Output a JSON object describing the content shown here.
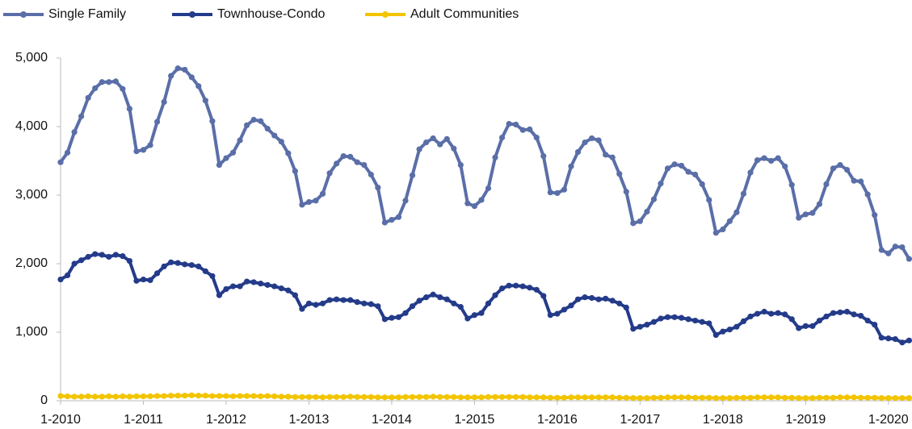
{
  "chart_data": {
    "type": "line",
    "categories": [
      "1-2010",
      null,
      null,
      null,
      null,
      null,
      null,
      null,
      null,
      null,
      null,
      null,
      "1-2011",
      null,
      null,
      null,
      null,
      null,
      null,
      null,
      null,
      null,
      null,
      null,
      "1-2012",
      null,
      null,
      null,
      null,
      null,
      null,
      null,
      null,
      null,
      null,
      null,
      "1-2013",
      null,
      null,
      null,
      null,
      null,
      null,
      null,
      null,
      null,
      null,
      null,
      "1-2014",
      null,
      null,
      null,
      null,
      null,
      null,
      null,
      null,
      null,
      null,
      null,
      "1-2015",
      null,
      null,
      null,
      null,
      null,
      null,
      null,
      null,
      null,
      null,
      null,
      "1-2016",
      null,
      null,
      null,
      null,
      null,
      null,
      null,
      null,
      null,
      null,
      null,
      "1-2017",
      null,
      null,
      null,
      null,
      null,
      null,
      null,
      null,
      null,
      null,
      null,
      "1-2018",
      null,
      null,
      null,
      null,
      null,
      null,
      null,
      null,
      null,
      null,
      null,
      "1-2019",
      null,
      null,
      null,
      null,
      null,
      null,
      null,
      null,
      null,
      null,
      null,
      "1-2020",
      null,
      null,
      null
    ],
    "series": [
      {
        "name": "Single Family",
        "color": "#5a6ea8",
        "values": [
          3480,
          3620,
          3920,
          4150,
          4420,
          4560,
          4650,
          4650,
          4660,
          4550,
          4260,
          3640,
          3660,
          3730,
          4070,
          4360,
          4740,
          4850,
          4830,
          4720,
          4590,
          4380,
          4080,
          3440,
          3540,
          3620,
          3800,
          4020,
          4100,
          4080,
          3970,
          3870,
          3780,
          3610,
          3350,
          2860,
          2900,
          2920,
          3020,
          3320,
          3460,
          3570,
          3560,
          3480,
          3440,
          3300,
          3110,
          2600,
          2640,
          2680,
          2920,
          3290,
          3670,
          3770,
          3830,
          3740,
          3820,
          3680,
          3440,
          2880,
          2840,
          2930,
          3100,
          3550,
          3840,
          4040,
          4030,
          3950,
          3960,
          3840,
          3570,
          3040,
          3030,
          3080,
          3420,
          3630,
          3770,
          3830,
          3800,
          3590,
          3550,
          3310,
          3050,
          2590,
          2620,
          2760,
          2940,
          3170,
          3390,
          3450,
          3430,
          3340,
          3300,
          3160,
          2930,
          2450,
          2500,
          2620,
          2750,
          3020,
          3330,
          3510,
          3540,
          3500,
          3540,
          3420,
          3150,
          2670,
          2720,
          2740,
          2870,
          3160,
          3390,
          3440,
          3370,
          3210,
          3200,
          3010,
          2710,
          2200,
          2150,
          2250,
          2240,
          2070
        ]
      },
      {
        "name": "Townhouse-Condo",
        "color": "#243b8a",
        "values": [
          1770,
          1830,
          2000,
          2050,
          2100,
          2140,
          2130,
          2100,
          2130,
          2110,
          2040,
          1750,
          1770,
          1760,
          1860,
          1960,
          2020,
          2010,
          1990,
          1980,
          1960,
          1890,
          1820,
          1540,
          1630,
          1670,
          1670,
          1740,
          1730,
          1710,
          1690,
          1670,
          1640,
          1610,
          1540,
          1340,
          1420,
          1400,
          1420,
          1470,
          1480,
          1470,
          1470,
          1440,
          1420,
          1410,
          1380,
          1190,
          1210,
          1220,
          1280,
          1380,
          1460,
          1510,
          1550,
          1510,
          1480,
          1420,
          1370,
          1200,
          1250,
          1280,
          1420,
          1540,
          1640,
          1680,
          1680,
          1670,
          1650,
          1620,
          1530,
          1250,
          1270,
          1330,
          1390,
          1480,
          1510,
          1500,
          1480,
          1490,
          1460,
          1420,
          1360,
          1050,
          1080,
          1110,
          1150,
          1200,
          1220,
          1220,
          1210,
          1190,
          1170,
          1150,
          1130,
          960,
          1010,
          1040,
          1080,
          1160,
          1230,
          1270,
          1300,
          1270,
          1280,
          1260,
          1190,
          1060,
          1090,
          1090,
          1170,
          1230,
          1280,
          1290,
          1300,
          1260,
          1240,
          1170,
          1110,
          920,
          910,
          900,
          850,
          880
        ]
      },
      {
        "name": "Adult Communities",
        "color": "#f2c500",
        "values": [
          70,
          65,
          60,
          60,
          65,
          60,
          60,
          65,
          60,
          65,
          60,
          65,
          65,
          65,
          70,
          70,
          75,
          75,
          75,
          80,
          75,
          75,
          70,
          70,
          70,
          65,
          70,
          70,
          70,
          65,
          70,
          65,
          60,
          60,
          55,
          55,
          55,
          55,
          50,
          55,
          55,
          55,
          60,
          55,
          55,
          55,
          50,
          50,
          50,
          50,
          55,
          55,
          55,
          55,
          60,
          55,
          55,
          55,
          50,
          50,
          50,
          50,
          55,
          55,
          55,
          55,
          55,
          55,
          50,
          50,
          50,
          45,
          45,
          45,
          50,
          50,
          50,
          50,
          50,
          50,
          50,
          45,
          45,
          40,
          40,
          40,
          45,
          45,
          50,
          50,
          50,
          50,
          45,
          45,
          45,
          40,
          40,
          40,
          45,
          45,
          45,
          50,
          50,
          50,
          50,
          45,
          45,
          40,
          40,
          40,
          45,
          45,
          45,
          50,
          50,
          50,
          45,
          45,
          45,
          40,
          40,
          40,
          40,
          40
        ]
      }
    ],
    "ylim": [
      0,
      5000
    ],
    "yticks": [
      0,
      {
        "value": 1000,
        "label": "1,000"
      },
      {
        "value": 2000,
        "label": "2,000"
      },
      {
        "value": 3000,
        "label": "3,000"
      },
      {
        "value": 4000,
        "label": "4,000"
      },
      {
        "value": 5000,
        "label": "5,000"
      }
    ],
    "legend": "top"
  }
}
